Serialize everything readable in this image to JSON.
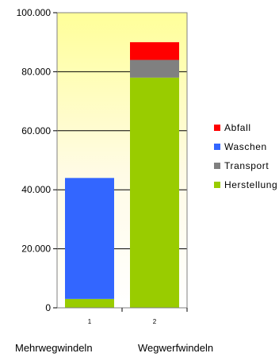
{
  "chart_data": {
    "type": "bar",
    "stacked": true,
    "categories": [
      "1",
      "2"
    ],
    "series": [
      {
        "name": "Herstellung",
        "color": "#99cc00",
        "values": [
          3000,
          78000
        ]
      },
      {
        "name": "Transport",
        "color": "#808080",
        "values": [
          0,
          6000
        ]
      },
      {
        "name": "Waschen",
        "color": "#3366ff",
        "values": [
          41000,
          0
        ]
      },
      {
        "name": "Abfall",
        "color": "#ff0000",
        "values": [
          0,
          6000
        ]
      }
    ],
    "ylim": [
      0,
      100000
    ],
    "yticks": [
      "0",
      "20.000",
      "40.000",
      "60.000",
      "80.000",
      "100.000"
    ],
    "legend_order": [
      "Abfall",
      "Waschen",
      "Transport",
      "Herstellung"
    ],
    "legend": "right",
    "grid": true,
    "plot_background": "gradient pale yellow"
  },
  "labels_below": [
    "Mehrwegwindeln",
    "Wegwerfwindeln"
  ]
}
